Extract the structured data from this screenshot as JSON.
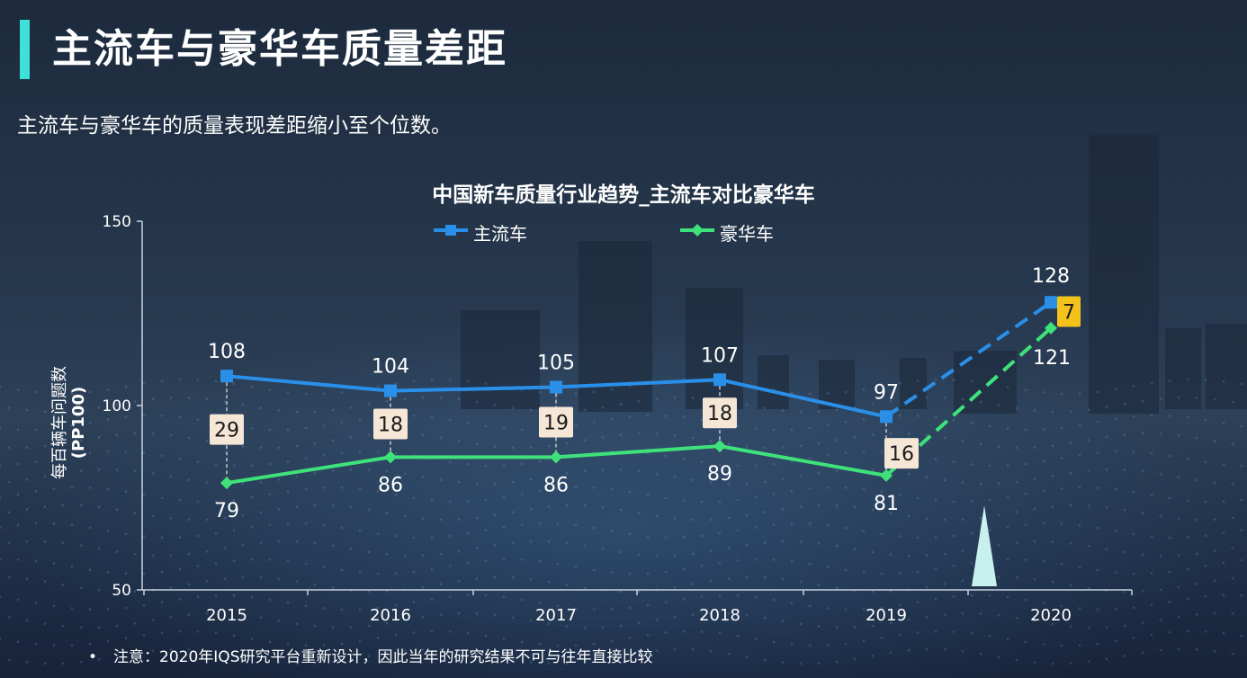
{
  "header": {
    "title": "主流车与豪华车质量差距",
    "subtitle": "主流车与豪华车的质量表现差距缩小至个位数。"
  },
  "footnote": {
    "bullet": "•",
    "text": "注意：2020年IQS研究平台重新设计，因此当年的研究结果不可与往年直接比较"
  },
  "colors": {
    "accent": "#3fe0d8",
    "mainstream": "#2a8fe8",
    "luxury": "#3fe27a",
    "gap_box": "#f5e6d6",
    "gap_box_highlight": "#f3c31c"
  },
  "chart_data": {
    "type": "line",
    "title": "中国新车质量行业趋势_主流车对比豪华车",
    "ylabel_line1": "每百辆车问题数",
    "ylabel_line2": "(PP100)",
    "xlabel": "",
    "ylim": [
      50,
      150
    ],
    "yticks": [
      50,
      100,
      150
    ],
    "categories": [
      "2015",
      "2016",
      "2017",
      "2018",
      "2019",
      "2020"
    ],
    "series": [
      {
        "name": "主流车",
        "marker": "square",
        "values": [
          108,
          104,
          105,
          107,
          97,
          128
        ],
        "labels": [
          "108",
          "104",
          "105",
          "107",
          "97",
          "128"
        ]
      },
      {
        "name": "豪华车",
        "marker": "diamond",
        "values": [
          79,
          86,
          86,
          89,
          81,
          121
        ],
        "labels": [
          "79",
          "86",
          "86",
          "89",
          "81",
          "121"
        ]
      }
    ],
    "dashed_segment": {
      "from": "2019",
      "to": "2020"
    },
    "gap_labels": [
      "29",
      "18",
      "19",
      "18",
      "16",
      "7"
    ],
    "highlight_gap_index": 5,
    "grid": false,
    "legend_position": "top"
  }
}
